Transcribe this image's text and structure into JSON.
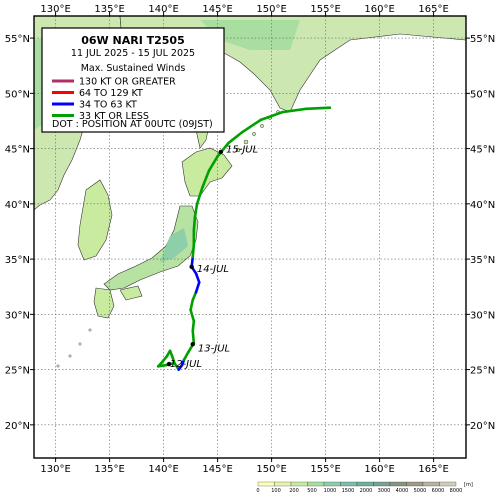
{
  "legend": {
    "title": "06W  NARI  T2505",
    "period": "11 JUL 2025 - 15 JUL 2025",
    "winds_heading": "Max. Sustained Winds",
    "entries": [
      {
        "label": "130 KT OR GREATER",
        "color": "#b03060"
      },
      {
        "label": "64 TO 129 KT",
        "color": "#ff0000"
      },
      {
        "label": "34 TO 63 KT",
        "color": "#0000ff"
      },
      {
        "label": "33 KT OR LESS",
        "color": "#00a000"
      }
    ],
    "dot_note": "DOT : POSITION AT 00UTC (09JST)"
  },
  "axes": {
    "lon_ticks": [
      "130°E",
      "135°E",
      "140°E",
      "145°E",
      "150°E",
      "155°E",
      "160°E",
      "165°E"
    ],
    "lat_ticks": [
      "55°N",
      "50°N",
      "45°N",
      "40°N",
      "35°N",
      "30°N",
      "25°N",
      "20°N"
    ],
    "lon_values": [
      130,
      135,
      140,
      145,
      150,
      155,
      160,
      165
    ],
    "lat_values": [
      55,
      50,
      45,
      40,
      35,
      30,
      25,
      20
    ],
    "lon_range": [
      128,
      168
    ],
    "lat_range": [
      17,
      57
    ]
  },
  "track": [
    {
      "lon": 141.0,
      "lat": 25.6,
      "kt": 33
    },
    {
      "lon": 141.4,
      "lat": 25.0,
      "kt": 40
    },
    {
      "lon": 141.7,
      "lat": 25.4,
      "kt": 40
    },
    {
      "lon": 141.9,
      "lat": 25.9,
      "kt": 33
    },
    {
      "lon": 142.3,
      "lat": 26.6,
      "kt": 33
    },
    {
      "lon": 142.8,
      "lat": 27.4,
      "kt": 33
    },
    {
      "lon": 142.7,
      "lat": 28.5,
      "kt": 33
    },
    {
      "lon": 142.8,
      "lat": 29.4,
      "kt": 33
    },
    {
      "lon": 142.5,
      "lat": 30.4,
      "kt": 33
    },
    {
      "lon": 142.7,
      "lat": 31.3,
      "kt": 33
    },
    {
      "lon": 143.0,
      "lat": 32.0,
      "kt": 40
    },
    {
      "lon": 143.3,
      "lat": 32.9,
      "kt": 40
    },
    {
      "lon": 143.0,
      "lat": 33.7,
      "kt": 40
    },
    {
      "lon": 142.6,
      "lat": 34.3,
      "kt": 40
    },
    {
      "lon": 142.7,
      "lat": 35.2,
      "kt": 33
    },
    {
      "lon": 142.8,
      "lat": 36.3,
      "kt": 33
    },
    {
      "lon": 142.8,
      "lat": 37.6,
      "kt": 33
    },
    {
      "lon": 142.9,
      "lat": 38.8,
      "kt": 33
    },
    {
      "lon": 143.1,
      "lat": 40.0,
      "kt": 33
    },
    {
      "lon": 143.6,
      "lat": 41.5,
      "kt": 33
    },
    {
      "lon": 144.2,
      "lat": 43.0,
      "kt": 33
    },
    {
      "lon": 145.0,
      "lat": 44.3,
      "kt": 33
    },
    {
      "lon": 146.0,
      "lat": 45.5,
      "kt": 33
    },
    {
      "lon": 147.3,
      "lat": 46.5,
      "kt": 33
    },
    {
      "lon": 149.0,
      "lat": 47.6,
      "kt": 33
    },
    {
      "lon": 151.0,
      "lat": 48.3,
      "kt": 33
    },
    {
      "lon": 153.2,
      "lat": 48.6,
      "kt": 33
    },
    {
      "lon": 155.4,
      "lat": 48.7,
      "kt": 33
    }
  ],
  "start_loop": [
    {
      "lon": 141.0,
      "lat": 25.6
    },
    {
      "lon": 140.8,
      "lat": 26.2
    },
    {
      "lon": 140.6,
      "lat": 26.7
    },
    {
      "lon": 140.3,
      "lat": 26.2
    },
    {
      "lon": 139.8,
      "lat": 25.6
    },
    {
      "lon": 139.5,
      "lat": 25.3
    },
    {
      "lon": 140.2,
      "lat": 25.4
    },
    {
      "lon": 141.0,
      "lat": 25.6
    }
  ],
  "day_labels": [
    {
      "text": "12-JUL",
      "lon": 140.3,
      "lat": 25.6,
      "dot_lon": 140.5,
      "dot_lat": 25.5
    },
    {
      "text": "13-JUL",
      "lon": 142.9,
      "lat": 27.0,
      "dot_lon": 142.7,
      "dot_lat": 27.3
    },
    {
      "text": "14-JUL",
      "lon": 142.8,
      "lat": 34.2,
      "dot_lon": 142.6,
      "dot_lat": 34.3
    },
    {
      "text": "15-JUL",
      "lon": 145.5,
      "lat": 45.0,
      "dot_lon": 145.3,
      "dot_lat": 44.7
    }
  ],
  "elevation_scale": {
    "labels": [
      "0",
      "100",
      "200",
      "500",
      "1000",
      "1500",
      "2000",
      "3000",
      "4000",
      "5000",
      "6000",
      "8000"
    ],
    "unit": "[m]",
    "colors": [
      "#ffffb3",
      "#e6f5a8",
      "#c8eba0",
      "#a8dfa0",
      "#8ccfa8",
      "#78c0a8",
      "#6eb0a0",
      "#7aa090",
      "#8c9280",
      "#a09a86",
      "#b8b0a0",
      "#d0ccc0"
    ]
  }
}
